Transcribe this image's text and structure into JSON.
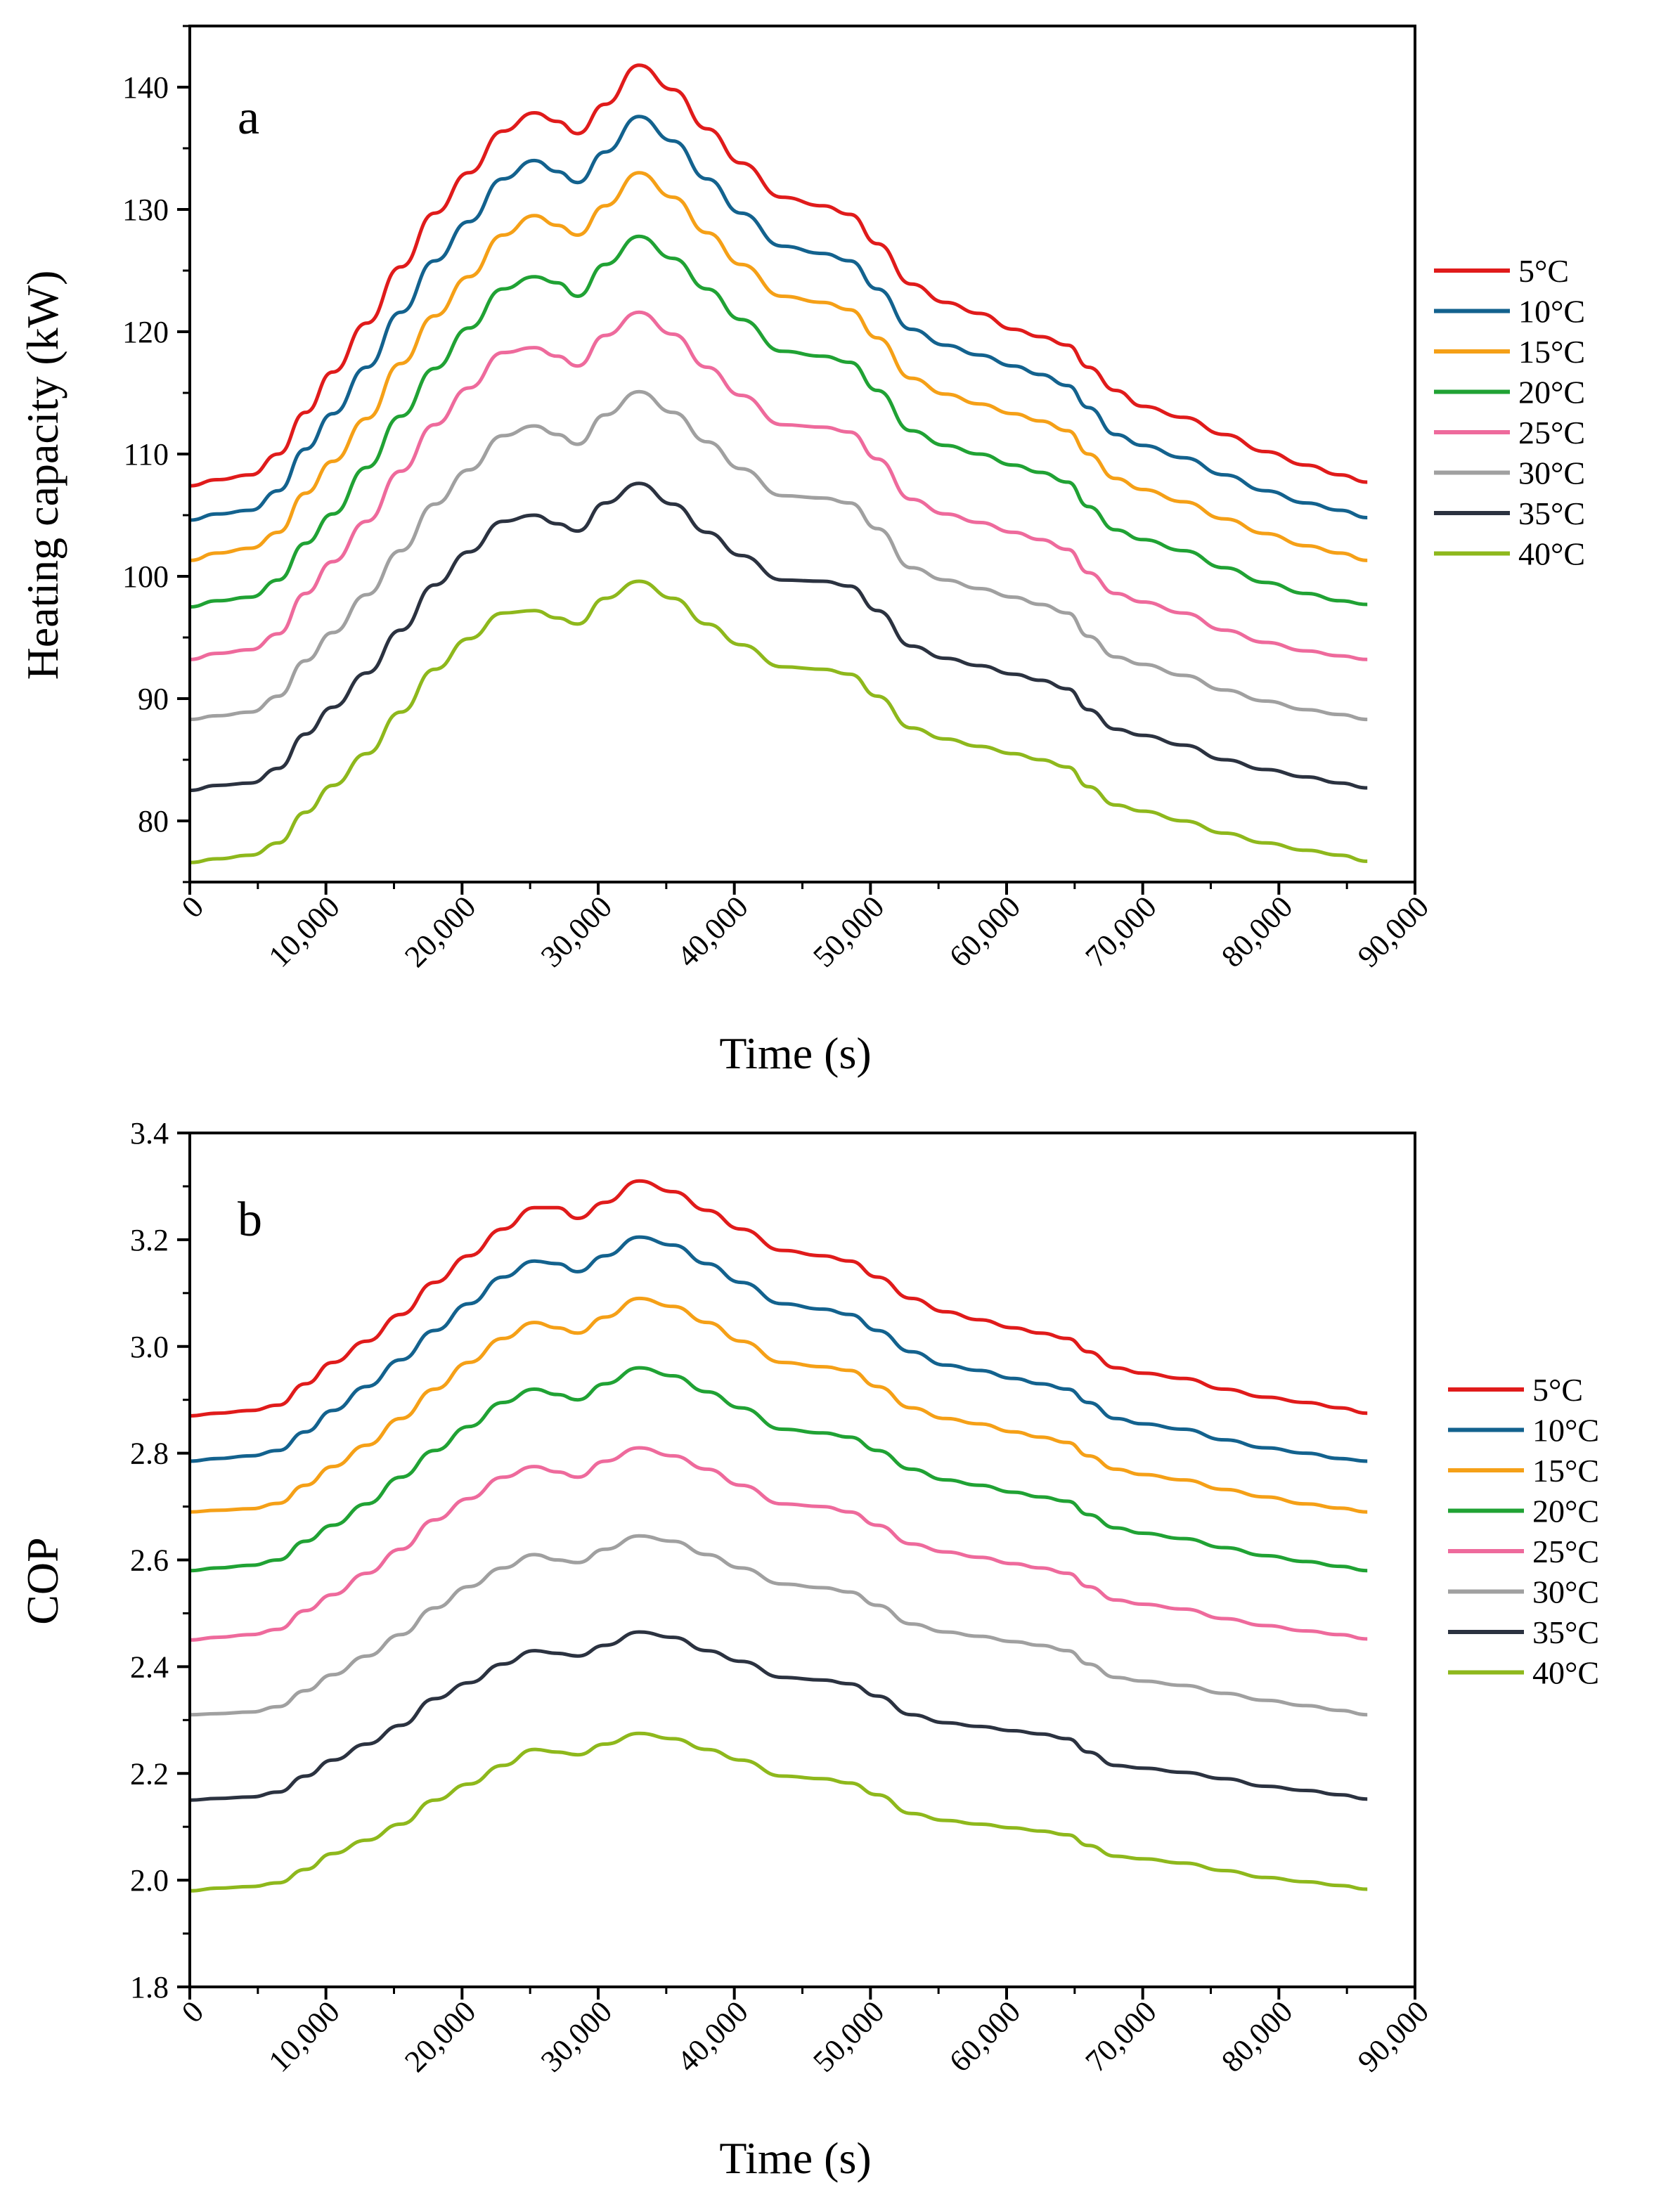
{
  "chart_data": [
    {
      "type": "line",
      "panel_label": "a",
      "xlabel": "Time (s)",
      "ylabel": "Heating capacity (kW)",
      "xlim": [
        0,
        90000
      ],
      "ylim": [
        75,
        145
      ],
      "xticks": [
        0,
        10000,
        20000,
        30000,
        40000,
        50000,
        60000,
        70000,
        80000,
        90000
      ],
      "xtick_labels": [
        "0",
        "10,000",
        "20,000",
        "30,000",
        "40,000",
        "50,000",
        "60,000",
        "70,000",
        "80,000",
        "90,000"
      ],
      "yticks": [
        80,
        90,
        100,
        110,
        120,
        130,
        140
      ],
      "ytick_labels": [
        "80",
        "90",
        "100",
        "110",
        "120",
        "130",
        "140"
      ],
      "grid": false,
      "legend_position": "right",
      "x": [
        0,
        2000,
        4500,
        6500,
        8500,
        10500,
        13000,
        15500,
        18000,
        20500,
        23000,
        25300,
        27000,
        28500,
        30500,
        33000,
        35500,
        38000,
        40500,
        43500,
        46500,
        48500,
        50500,
        53000,
        55500,
        58000,
        60500,
        62500,
        64500,
        66000,
        68000,
        70000,
        73000,
        76000,
        79000,
        82000,
        84500,
        86500
      ],
      "series": [
        {
          "name": "5°C",
          "color": "#e01b1b",
          "values": [
            107.4,
            107.9,
            108.3,
            110.0,
            113.4,
            116.7,
            120.7,
            125.3,
            129.7,
            133.0,
            136.4,
            137.9,
            137.2,
            136.2,
            138.6,
            141.8,
            139.8,
            136.6,
            133.8,
            131.0,
            130.3,
            129.6,
            127.2,
            123.9,
            122.4,
            121.5,
            120.2,
            119.6,
            118.9,
            117.1,
            115.2,
            113.9,
            113.0,
            111.6,
            110.2,
            109.1,
            108.3,
            107.7
          ]
        },
        {
          "name": "10°C",
          "color": "#13628e",
          "values": [
            104.6,
            105.1,
            105.4,
            107.0,
            110.4,
            113.3,
            117.1,
            121.6,
            125.8,
            129.0,
            132.5,
            134.0,
            133.1,
            132.2,
            134.7,
            137.6,
            135.6,
            132.5,
            129.7,
            127.0,
            126.4,
            125.8,
            123.5,
            120.2,
            118.9,
            118.1,
            117.2,
            116.5,
            115.6,
            113.8,
            111.6,
            110.7,
            109.7,
            108.3,
            107.0,
            106.0,
            105.4,
            104.8
          ]
        },
        {
          "name": "15°C",
          "color": "#f5a017",
          "values": [
            101.3,
            101.9,
            102.3,
            103.6,
            106.8,
            109.4,
            112.9,
            117.4,
            121.3,
            124.5,
            127.9,
            129.5,
            128.7,
            127.9,
            130.3,
            133.0,
            131.0,
            128.1,
            125.5,
            122.9,
            122.4,
            121.8,
            119.5,
            116.2,
            114.9,
            114.1,
            113.3,
            112.7,
            111.9,
            110.0,
            108.0,
            107.1,
            106.1,
            104.7,
            103.5,
            102.5,
            101.9,
            101.3
          ]
        },
        {
          "name": "20°C",
          "color": "#20a234",
          "values": [
            97.5,
            98.0,
            98.3,
            99.7,
            102.7,
            105.1,
            108.9,
            113.1,
            117.0,
            120.3,
            123.5,
            124.5,
            124.0,
            122.9,
            125.5,
            127.8,
            126.0,
            123.5,
            121.0,
            118.4,
            118.0,
            117.5,
            115.2,
            111.9,
            110.7,
            110.0,
            109.1,
            108.5,
            107.7,
            105.7,
            103.8,
            103.0,
            102.1,
            100.7,
            99.5,
            98.6,
            98.0,
            97.7
          ]
        },
        {
          "name": "25°C",
          "color": "#ee6a9c",
          "values": [
            93.2,
            93.7,
            94.0,
            95.3,
            98.6,
            101.2,
            104.5,
            108.6,
            112.4,
            115.4,
            118.3,
            118.7,
            118.0,
            117.2,
            119.7,
            121.6,
            119.8,
            117.1,
            114.8,
            112.4,
            112.2,
            111.8,
            109.6,
            106.3,
            105.1,
            104.4,
            103.6,
            103.0,
            102.2,
            100.3,
            98.6,
            97.9,
            97.0,
            95.6,
            94.6,
            93.9,
            93.5,
            93.2
          ]
        },
        {
          "name": "30°C",
          "color": "#a0a0a0",
          "values": [
            88.3,
            88.6,
            88.9,
            90.2,
            93.1,
            95.4,
            98.5,
            102.1,
            105.9,
            108.7,
            111.5,
            112.3,
            111.6,
            110.8,
            113.2,
            115.1,
            113.4,
            111.0,
            108.8,
            106.6,
            106.4,
            106.0,
            103.9,
            100.7,
            99.7,
            99.0,
            98.3,
            97.7,
            97.0,
            95.1,
            93.4,
            92.8,
            91.9,
            90.7,
            89.8,
            89.1,
            88.7,
            88.3
          ]
        },
        {
          "name": "35°C",
          "color": "#2b3240",
          "values": [
            82.5,
            82.9,
            83.1,
            84.3,
            87.1,
            89.3,
            92.1,
            95.6,
            99.3,
            102.0,
            104.5,
            105.0,
            104.3,
            103.7,
            106.0,
            107.6,
            105.9,
            103.6,
            101.7,
            99.7,
            99.6,
            99.2,
            97.2,
            94.3,
            93.3,
            92.7,
            92.0,
            91.5,
            90.8,
            89.1,
            87.5,
            87.0,
            86.2,
            85.0,
            84.2,
            83.6,
            83.1,
            82.7
          ]
        },
        {
          "name": "40°C",
          "color": "#8eb81c",
          "values": [
            76.6,
            76.9,
            77.2,
            78.2,
            80.7,
            82.9,
            85.5,
            88.9,
            92.4,
            94.9,
            97.0,
            97.2,
            96.6,
            96.1,
            98.2,
            99.6,
            98.2,
            96.1,
            94.4,
            92.6,
            92.4,
            92.0,
            90.2,
            87.6,
            86.7,
            86.1,
            85.5,
            85.0,
            84.4,
            82.8,
            81.3,
            80.8,
            80.0,
            79.0,
            78.2,
            77.6,
            77.2,
            76.7
          ]
        }
      ]
    },
    {
      "type": "line",
      "panel_label": "b",
      "xlabel": "Time (s)",
      "ylabel": "COP",
      "xlim": [
        0,
        90000
      ],
      "ylim": [
        1.8,
        3.4
      ],
      "xticks": [
        0,
        10000,
        20000,
        30000,
        40000,
        50000,
        60000,
        70000,
        80000,
        90000
      ],
      "xtick_labels": [
        "0",
        "10,000",
        "20,000",
        "30,000",
        "40,000",
        "50,000",
        "60,000",
        "70,000",
        "80,000",
        "90,000"
      ],
      "yticks": [
        1.8,
        2.0,
        2.2,
        2.4,
        2.6,
        2.8,
        3.0,
        3.2,
        3.4
      ],
      "ytick_labels": [
        "1.8",
        "2.0",
        "2.2",
        "2.4",
        "2.6",
        "2.8",
        "3.0",
        "3.2",
        "3.4"
      ],
      "grid": false,
      "legend_position": "right",
      "x": [
        0,
        2000,
        4500,
        6500,
        8500,
        10500,
        13000,
        15500,
        18000,
        20500,
        23000,
        25300,
        27000,
        28500,
        30500,
        33000,
        35500,
        38000,
        40500,
        43500,
        46500,
        48500,
        50500,
        53000,
        55500,
        58000,
        60500,
        62500,
        64500,
        66000,
        68000,
        70000,
        73000,
        76000,
        79000,
        82000,
        84500,
        86500
      ],
      "series": [
        {
          "name": "5°C",
          "color": "#e01b1b",
          "values": [
            2.87,
            2.875,
            2.88,
            2.89,
            2.93,
            2.97,
            3.01,
            3.06,
            3.12,
            3.17,
            3.22,
            3.26,
            3.26,
            3.24,
            3.27,
            3.31,
            3.29,
            3.255,
            3.22,
            3.18,
            3.17,
            3.16,
            3.13,
            3.09,
            3.065,
            3.05,
            3.035,
            3.025,
            3.015,
            2.99,
            2.96,
            2.95,
            2.94,
            2.92,
            2.905,
            2.895,
            2.885,
            2.875
          ]
        },
        {
          "name": "10°C",
          "color": "#13628e",
          "values": [
            2.785,
            2.79,
            2.795,
            2.805,
            2.84,
            2.88,
            2.925,
            2.975,
            3.03,
            3.08,
            3.13,
            3.16,
            3.155,
            3.14,
            3.17,
            3.205,
            3.19,
            3.155,
            3.12,
            3.08,
            3.07,
            3.06,
            3.03,
            2.99,
            2.965,
            2.955,
            2.94,
            2.93,
            2.92,
            2.895,
            2.865,
            2.855,
            2.845,
            2.825,
            2.81,
            2.8,
            2.79,
            2.785
          ]
        },
        {
          "name": "15°C",
          "color": "#f5a017",
          "values": [
            2.69,
            2.693,
            2.696,
            2.706,
            2.74,
            2.775,
            2.815,
            2.865,
            2.92,
            2.97,
            3.015,
            3.045,
            3.035,
            3.025,
            3.055,
            3.09,
            3.075,
            3.045,
            3.01,
            2.97,
            2.962,
            2.955,
            2.925,
            2.885,
            2.865,
            2.855,
            2.84,
            2.83,
            2.82,
            2.795,
            2.77,
            2.76,
            2.75,
            2.732,
            2.718,
            2.705,
            2.697,
            2.69
          ]
        },
        {
          "name": "20°C",
          "color": "#20a234",
          "values": [
            2.58,
            2.585,
            2.59,
            2.6,
            2.635,
            2.665,
            2.705,
            2.755,
            2.805,
            2.85,
            2.895,
            2.92,
            2.91,
            2.9,
            2.93,
            2.96,
            2.945,
            2.915,
            2.885,
            2.845,
            2.838,
            2.83,
            2.805,
            2.77,
            2.75,
            2.74,
            2.727,
            2.718,
            2.71,
            2.685,
            2.66,
            2.65,
            2.64,
            2.623,
            2.608,
            2.597,
            2.588,
            2.58
          ]
        },
        {
          "name": "25°C",
          "color": "#ee6a9c",
          "values": [
            2.45,
            2.455,
            2.46,
            2.47,
            2.505,
            2.535,
            2.575,
            2.62,
            2.675,
            2.715,
            2.755,
            2.775,
            2.765,
            2.755,
            2.785,
            2.81,
            2.795,
            2.77,
            2.74,
            2.705,
            2.7,
            2.69,
            2.665,
            2.63,
            2.615,
            2.605,
            2.593,
            2.585,
            2.575,
            2.55,
            2.525,
            2.517,
            2.508,
            2.49,
            2.477,
            2.467,
            2.46,
            2.452
          ]
        },
        {
          "name": "30°C",
          "color": "#a0a0a0",
          "values": [
            2.31,
            2.312,
            2.315,
            2.325,
            2.355,
            2.385,
            2.42,
            2.46,
            2.51,
            2.55,
            2.585,
            2.61,
            2.6,
            2.595,
            2.62,
            2.645,
            2.635,
            2.61,
            2.585,
            2.555,
            2.548,
            2.54,
            2.515,
            2.48,
            2.465,
            2.457,
            2.447,
            2.44,
            2.43,
            2.405,
            2.38,
            2.373,
            2.365,
            2.35,
            2.337,
            2.327,
            2.318,
            2.31
          ]
        },
        {
          "name": "35°C",
          "color": "#2b3240",
          "values": [
            2.15,
            2.153,
            2.156,
            2.165,
            2.195,
            2.225,
            2.255,
            2.29,
            2.34,
            2.37,
            2.405,
            2.43,
            2.425,
            2.42,
            2.44,
            2.465,
            2.455,
            2.43,
            2.41,
            2.38,
            2.375,
            2.368,
            2.345,
            2.31,
            2.295,
            2.288,
            2.28,
            2.274,
            2.265,
            2.24,
            2.215,
            2.21,
            2.202,
            2.19,
            2.176,
            2.168,
            2.16,
            2.152
          ]
        },
        {
          "name": "40°C",
          "color": "#8eb81c",
          "values": [
            1.98,
            1.985,
            1.988,
            1.995,
            2.02,
            2.05,
            2.075,
            2.105,
            2.15,
            2.18,
            2.215,
            2.245,
            2.24,
            2.235,
            2.255,
            2.275,
            2.265,
            2.245,
            2.225,
            2.195,
            2.19,
            2.182,
            2.16,
            2.125,
            2.112,
            2.105,
            2.098,
            2.092,
            2.085,
            2.065,
            2.045,
            2.04,
            2.032,
            2.018,
            2.005,
            1.997,
            1.99,
            1.983
          ]
        }
      ]
    }
  ]
}
